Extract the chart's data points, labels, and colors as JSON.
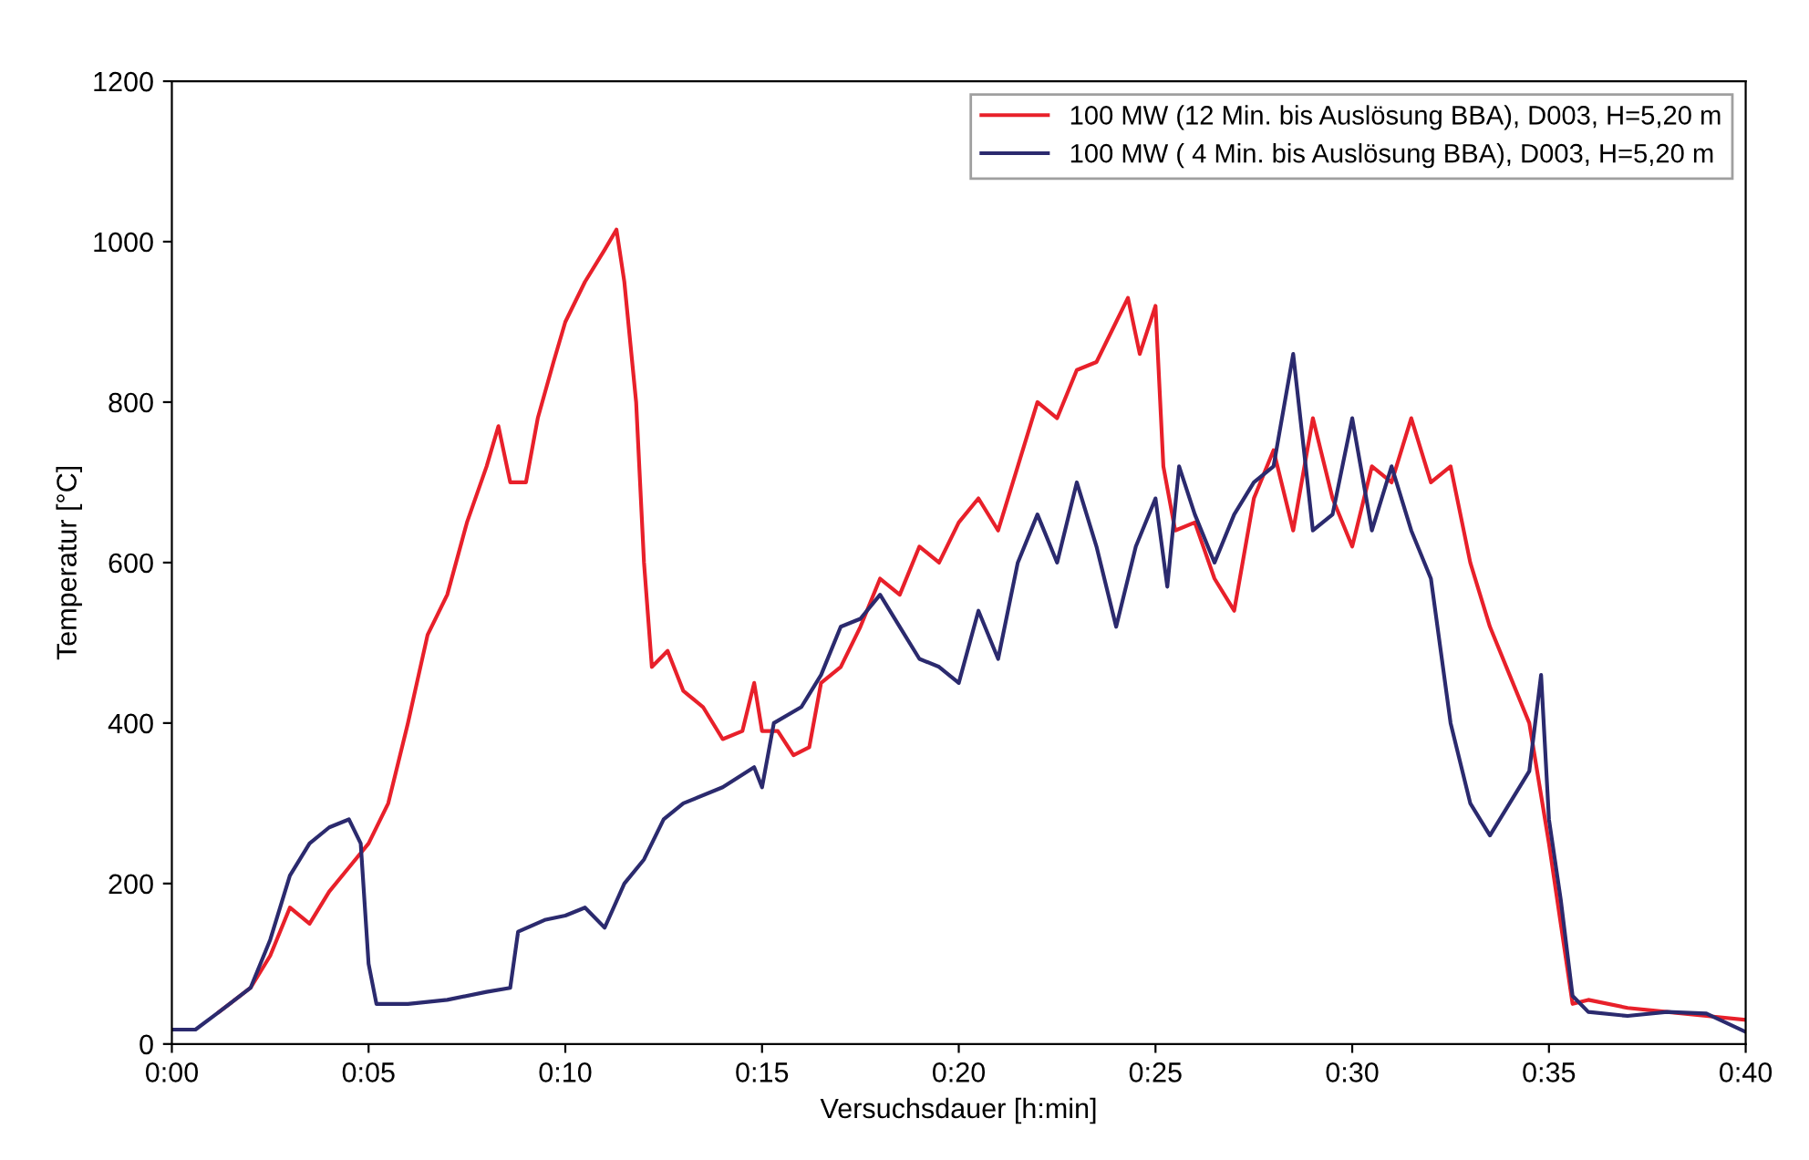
{
  "chart_data": {
    "type": "line",
    "xlabel": "Versuchsdauer [h:min]",
    "ylabel": "Temperatur [°C]",
    "xlim": [
      0,
      40
    ],
    "xticks": [
      {
        "value": 0,
        "label": "0:00"
      },
      {
        "value": 5,
        "label": "0:05"
      },
      {
        "value": 10,
        "label": "0:10"
      },
      {
        "value": 15,
        "label": "0:15"
      },
      {
        "value": 20,
        "label": "0:20"
      },
      {
        "value": 25,
        "label": "0:25"
      },
      {
        "value": 30,
        "label": "0:30"
      },
      {
        "value": 35,
        "label": "0:35"
      },
      {
        "value": 40,
        "label": "0:40"
      }
    ],
    "ylim": [
      0,
      1200
    ],
    "yticks": [
      0,
      200,
      400,
      600,
      800,
      1000,
      1200
    ],
    "grid": false,
    "legend": "top right",
    "marker": "none",
    "line_style": "solid",
    "series": [
      {
        "name": "100 MW (12 Min. bis Auslösung BBA), D003, H=5,20 m",
        "color": "#e8202a",
        "x": [
          1.2,
          2.0,
          2.5,
          3.0,
          3.5,
          4.0,
          4.5,
          5.0,
          5.5,
          6.0,
          6.5,
          7.0,
          7.5,
          8.0,
          8.3,
          8.6,
          9.0,
          9.3,
          9.7,
          10.0,
          10.5,
          11.0,
          11.3,
          11.5,
          11.8,
          12.0,
          12.2,
          12.6,
          13.0,
          13.5,
          14.0,
          14.5,
          14.8,
          15.0,
          15.4,
          15.8,
          16.2,
          16.5,
          17.0,
          17.5,
          18.0,
          18.5,
          19.0,
          19.5,
          20.0,
          20.5,
          21.0,
          21.5,
          22.0,
          22.5,
          23.0,
          23.5,
          24.0,
          24.3,
          24.6,
          25.0,
          25.2,
          25.5,
          26.0,
          26.5,
          27.0,
          27.5,
          28.0,
          28.5,
          29.0,
          29.5,
          30.0,
          30.5,
          31.0,
          31.5,
          32.0,
          32.5,
          33.0,
          33.5,
          34.0,
          34.5,
          35.0,
          35.3,
          35.6,
          36.0,
          37.0,
          38.0,
          39.0,
          40.0
        ],
        "values": [
          40,
          70,
          110,
          170,
          150,
          190,
          220,
          250,
          300,
          400,
          510,
          560,
          650,
          720,
          770,
          700,
          700,
          780,
          850,
          900,
          950,
          990,
          1015,
          950,
          800,
          600,
          470,
          490,
          440,
          420,
          380,
          390,
          450,
          390,
          390,
          360,
          370,
          450,
          470,
          520,
          580,
          560,
          620,
          600,
          650,
          680,
          640,
          720,
          800,
          780,
          840,
          850,
          900,
          930,
          860,
          920,
          720,
          640,
          650,
          580,
          540,
          680,
          740,
          640,
          780,
          680,
          620,
          720,
          700,
          780,
          700,
          720,
          600,
          520,
          460,
          400,
          250,
          150,
          50,
          55,
          45,
          40,
          35,
          30
        ]
      },
      {
        "name": "100 MW ( 4 Min. bis Auslösung BBA), D003, H=5,20 m",
        "color": "#2b2a6e",
        "x": [
          0,
          0.6,
          1.2,
          2.0,
          2.5,
          3.0,
          3.5,
          4.0,
          4.5,
          4.8,
          5.0,
          5.2,
          6.0,
          7.0,
          8.0,
          8.6,
          8.8,
          9.5,
          10.0,
          10.5,
          11.0,
          11.5,
          12.0,
          12.5,
          13.0,
          14.0,
          14.8,
          15.0,
          15.3,
          16.0,
          16.5,
          17.0,
          17.5,
          18.0,
          18.5,
          19.0,
          19.5,
          20.0,
          20.5,
          21.0,
          21.5,
          22.0,
          22.5,
          23.0,
          23.5,
          24.0,
          24.5,
          25.0,
          25.3,
          25.6,
          26.0,
          26.5,
          27.0,
          27.5,
          28.0,
          28.5,
          29.0,
          29.5,
          30.0,
          30.5,
          31.0,
          31.5,
          32.0,
          32.5,
          33.0,
          33.5,
          34.0,
          34.5,
          34.8,
          35.0,
          35.3,
          35.6,
          36.0,
          37.0,
          38.0,
          39.0,
          40.0
        ],
        "values": [
          18,
          18,
          40,
          70,
          130,
          210,
          250,
          270,
          280,
          250,
          100,
          50,
          50,
          55,
          65,
          70,
          140,
          155,
          160,
          170,
          145,
          200,
          230,
          280,
          300,
          320,
          345,
          320,
          400,
          420,
          460,
          520,
          530,
          560,
          520,
          480,
          470,
          450,
          540,
          480,
          600,
          660,
          600,
          700,
          620,
          520,
          620,
          680,
          570,
          720,
          660,
          600,
          660,
          700,
          720,
          860,
          640,
          660,
          780,
          640,
          720,
          640,
          580,
          400,
          300,
          260,
          300,
          340,
          460,
          280,
          180,
          60,
          40,
          35,
          40,
          38,
          15
        ]
      }
    ]
  }
}
